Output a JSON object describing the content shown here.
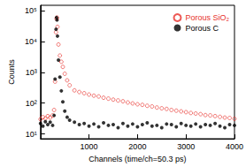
{
  "chart_data": {
    "type": "scatter",
    "x_label": "Channels (time/ch=50.3 ps)",
    "y_label": "Counts",
    "log": "y",
    "legend": "top-right",
    "xlim": [
      0,
      4000
    ],
    "xticks": [
      1000,
      2000,
      3000,
      4000
    ],
    "ylim": [
      7,
      150000
    ],
    "yticks": [
      {
        "value": 10,
        "label": "10¹"
      },
      {
        "value": 100,
        "label": "10²"
      },
      {
        "value": 1000,
        "label": "10³"
      },
      {
        "value": 10000,
        "label": "10⁴"
      },
      {
        "value": 100000,
        "label": "10⁵"
      }
    ],
    "x": [
      0,
      50,
      100,
      150,
      200,
      250,
      280,
      300,
      320,
      330,
      340,
      350,
      370,
      400,
      430,
      460,
      500,
      550,
      600,
      700,
      800,
      900,
      1000,
      1100,
      1200,
      1300,
      1400,
      1500,
      1600,
      1700,
      1800,
      1900,
      2000,
      2100,
      2200,
      2300,
      2400,
      2500,
      2600,
      2700,
      2800,
      2900,
      3000,
      3100,
      3200,
      3300,
      3400,
      3500,
      3600,
      3700,
      3800,
      3900,
      4000
    ],
    "series": [
      {
        "name": "Porous SiO₂",
        "color": "#e8302a",
        "marker": "open_circle",
        "values": [
          30,
          35,
          32,
          38,
          34,
          40,
          60,
          500,
          20000,
          55000,
          60000,
          30000,
          8000,
          3500,
          2200,
          1500,
          900,
          550,
          380,
          260,
          230,
          210,
          190,
          175,
          165,
          150,
          140,
          130,
          122,
          115,
          105,
          98,
          92,
          88,
          82,
          78,
          72,
          68,
          65,
          60,
          57,
          54,
          51,
          48,
          46,
          44,
          41,
          40,
          38,
          36,
          34,
          33,
          31
        ]
      },
      {
        "name": "Porous C",
        "color": "#000000",
        "marker": "circle",
        "values": [
          22,
          18,
          25,
          20,
          24,
          19,
          40,
          600,
          25000,
          60000,
          50000,
          15000,
          2500,
          700,
          250,
          110,
          55,
          35,
          28,
          24,
          20,
          22,
          18,
          21,
          17,
          23,
          19,
          20,
          16,
          22,
          18,
          21,
          17,
          20,
          23,
          18,
          19,
          16,
          21,
          20,
          17,
          22,
          19,
          18,
          21,
          17,
          20,
          19,
          22,
          18,
          16,
          20,
          19
        ]
      }
    ]
  }
}
